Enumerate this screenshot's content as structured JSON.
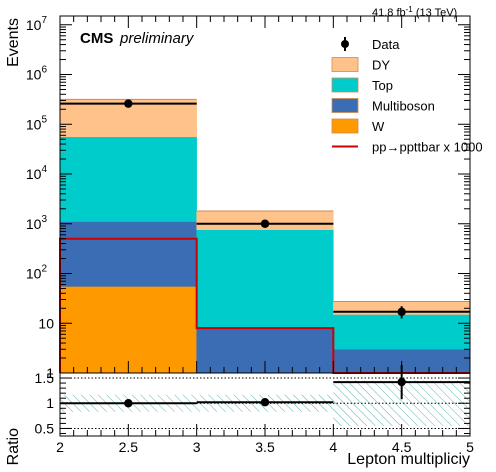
{
  "chart_data": [
    {
      "type": "bar",
      "stacked": true,
      "log_y": true,
      "experiment_label": "CMS",
      "status_label": "preliminary",
      "lumi_label": "41.8 fb",
      "lumi_exponent": "-1",
      "energy_label": "(13 TeV)",
      "xlabel": "",
      "ylabel": "Events",
      "xlim": [
        2,
        5
      ],
      "ylim": [
        1,
        15000000
      ],
      "y_ticks": [
        {
          "value": 10,
          "base": "10",
          "exp": ""
        },
        {
          "value": 100,
          "base": "10",
          "exp": "2"
        },
        {
          "value": 1000,
          "base": "10",
          "exp": "3"
        },
        {
          "value": 10000,
          "base": "10",
          "exp": "4"
        },
        {
          "value": 100000,
          "base": "10",
          "exp": "5"
        },
        {
          "value": 1000000,
          "base": "10",
          "exp": "6"
        },
        {
          "value": 10000000,
          "base": "10",
          "exp": "7"
        }
      ],
      "y_tick_one": "1",
      "bin_edges": [
        2,
        3,
        4,
        5
      ],
      "stack": [
        {
          "name": "W",
          "color": "#ff9900",
          "values": [
            55,
            0,
            0
          ]
        },
        {
          "name": "Multiboson",
          "color": "#3a6db3",
          "values": [
            1050,
            8,
            3
          ]
        },
        {
          "name": "Top",
          "color": "#00cccc",
          "values": [
            55000,
            750,
            12
          ]
        },
        {
          "name": "DY",
          "color": "#ffc28a",
          "values": [
            260000,
            1050,
            12.3
          ]
        }
      ],
      "signal": {
        "name": "pp→ppttbar x 1000",
        "color": "#cc0000",
        "values": [
          500,
          8,
          1
        ]
      },
      "data": {
        "name": "Data",
        "x": [
          2.5,
          3.5,
          4.5
        ],
        "values": [
          260000,
          1000,
          17
        ],
        "err_low": [
          520,
          32,
          4.5
        ],
        "err_high": [
          520,
          32,
          5
        ]
      },
      "legend": {
        "position": "top-right",
        "entries": [
          "Data",
          "DY",
          "Top",
          "Multiboson",
          "W",
          "pp→ppttbar x 1000"
        ]
      },
      "grid": false
    },
    {
      "type": "scatter",
      "xlabel": "Lepton multipliciy",
      "ylabel": "Ratio",
      "xlim": [
        2,
        5
      ],
      "ylim": [
        0.35,
        1.6
      ],
      "x_ticks": [
        "2",
        "2.5",
        "3",
        "3.5",
        "4",
        "4.5",
        "5"
      ],
      "y_ticks": [
        "0.5",
        "1",
        "1.5"
      ],
      "bin_edges": [
        2,
        3,
        4,
        5
      ],
      "x": [
        2.5,
        3.5,
        4.5
      ],
      "values": [
        1.0,
        1.02,
        1.42
      ],
      "err_low": [
        0.01,
        0.03,
        0.34
      ],
      "err_high": [
        0.01,
        0.03,
        0.34
      ],
      "uncertainty_band": [
        [
          0.83,
          1.17
        ],
        [
          0.83,
          1.17
        ],
        [
          0.55,
          1.45
        ]
      ],
      "reference_lines": [
        0.5,
        1.0,
        1.5
      ],
      "grid": false
    }
  ]
}
